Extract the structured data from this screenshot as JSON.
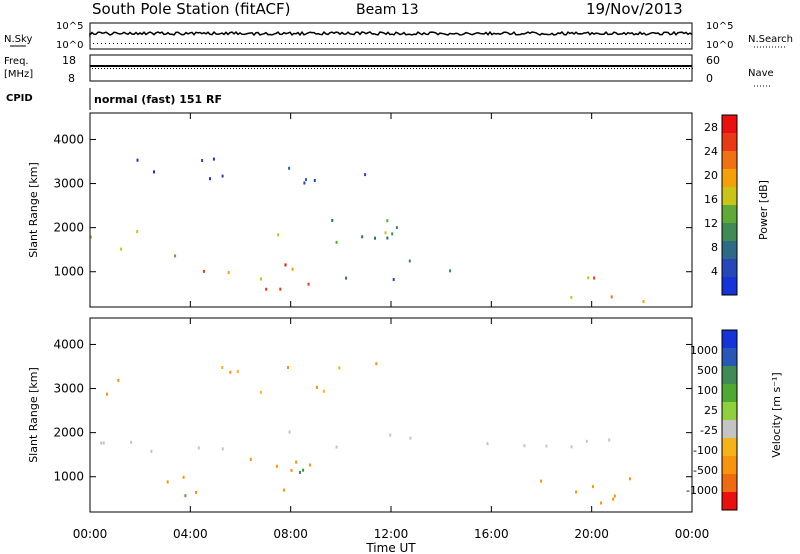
{
  "header": {
    "station": "South Pole Station (fitACF)",
    "beam": "Beam 13",
    "date": "19/Nov/2013"
  },
  "top_panels": {
    "nsky_label": "N.Sky",
    "nsky_ticks": [
      "10^5",
      "10^0"
    ],
    "nsearch_label": "N.Search",
    "nsearch_ticks": [
      "10^5",
      "10^0"
    ],
    "freq_label": "Freq.",
    "freq_unit": "[MHz]",
    "freq_ticks": [
      "18",
      "8"
    ],
    "nave_label": "Nave",
    "nave_ticks": [
      "60",
      "0"
    ],
    "cpid_label": "CPID",
    "cpid_text": "normal (fast) 151 RF"
  },
  "colors": {
    "power_scale": [
      "#1533d6",
      "#2647b7",
      "#2e6a86",
      "#3f8a55",
      "#60a838",
      "#c9c41a",
      "#f4a00a",
      "#f07015",
      "#e83a16",
      "#e81010"
    ],
    "velocity_scale": [
      "#1533d6",
      "#2a57b6",
      "#3f8a55",
      "#4fa832",
      "#8fd040",
      "#c4c4c4",
      "#f4b31a",
      "#f7940f",
      "#f06a12",
      "#e81010"
    ]
  },
  "chart_data": [
    {
      "type": "heatmap",
      "panel": "power",
      "ylabel": "Slant Range [km]",
      "yticks": [
        "1000",
        "2000",
        "3000",
        "4000"
      ],
      "ylim": [
        200,
        4600
      ],
      "xticks": [
        "00:00",
        "04:00",
        "08:00",
        "12:00",
        "16:00",
        "20:00",
        "00:00"
      ],
      "xlim_hours": [
        0,
        24
      ],
      "colorbar_label": "Power [dB]",
      "colorbar_ticks": [
        "4",
        "8",
        "12",
        "16",
        "20",
        "24",
        "28"
      ],
      "colorbar_range": [
        0,
        30
      ],
      "scatter_regions": [
        {
          "t": [
            0.0,
            12.2
          ],
          "r": [
            1500,
            1950
          ],
          "value": 12
        },
        {
          "t": [
            1.2,
            5.5
          ],
          "r": [
            1250,
            1600
          ],
          "value": 22
        },
        {
          "t": [
            3.2,
            9.0
          ],
          "r": [
            500,
            1150
          ],
          "value": 20
        },
        {
          "t": [
            6.5,
            8.8
          ],
          "r": [
            550,
            1500
          ],
          "value": 25
        },
        {
          "t": [
            9.0,
            13.2
          ],
          "r": [
            1700,
            2300
          ],
          "value": 9
        },
        {
          "t": [
            10.0,
            14.5
          ],
          "r": [
            750,
            1350
          ],
          "value": 6
        },
        {
          "t": [
            17.8,
            22.5
          ],
          "r": [
            350,
            900
          ],
          "value": 15
        },
        {
          "t": [
            20.0,
            21.8
          ],
          "r": [
            480,
            900
          ],
          "value": 24
        },
        {
          "t": [
            0.5,
            11.5
          ],
          "r": [
            2900,
            3600
          ],
          "value": 4
        }
      ]
    },
    {
      "type": "heatmap",
      "panel": "velocity",
      "ylabel": "Slant Range [km]",
      "yticks": [
        "1000",
        "2000",
        "3000",
        "4000"
      ],
      "ylim": [
        200,
        4600
      ],
      "xticks": [
        "00:00",
        "04:00",
        "08:00",
        "12:00",
        "16:00",
        "20:00",
        "00:00"
      ],
      "xlim_hours": [
        0,
        24
      ],
      "xlabel": "Time UT",
      "colorbar_label": "Velocity [m s⁻¹]",
      "colorbar_ticks": [
        "1000",
        "500",
        "100",
        "25",
        "-25",
        "-100",
        "-500",
        "-1000"
      ],
      "scatter_regions": [
        {
          "t": [
            0.0,
            12.5
          ],
          "r": [
            1550,
            2050
          ],
          "value": 0
        },
        {
          "t": [
            12.0,
            24.0
          ],
          "r": [
            1650,
            2050
          ],
          "value": 0
        },
        {
          "t": [
            3.0,
            9.2
          ],
          "r": [
            550,
            1550
          ],
          "value": -150
        },
        {
          "t": [
            8.2,
            10.2
          ],
          "r": [
            600,
            1300
          ],
          "value": 300
        },
        {
          "t": [
            2.8,
            4.2
          ],
          "r": [
            500,
            800
          ],
          "value": 150
        },
        {
          "t": [
            17.8,
            24.0
          ],
          "r": [
            300,
            1050
          ],
          "value": -200
        },
        {
          "t": [
            0.5,
            11.5
          ],
          "r": [
            2900,
            3600
          ],
          "value": -100
        }
      ]
    }
  ]
}
